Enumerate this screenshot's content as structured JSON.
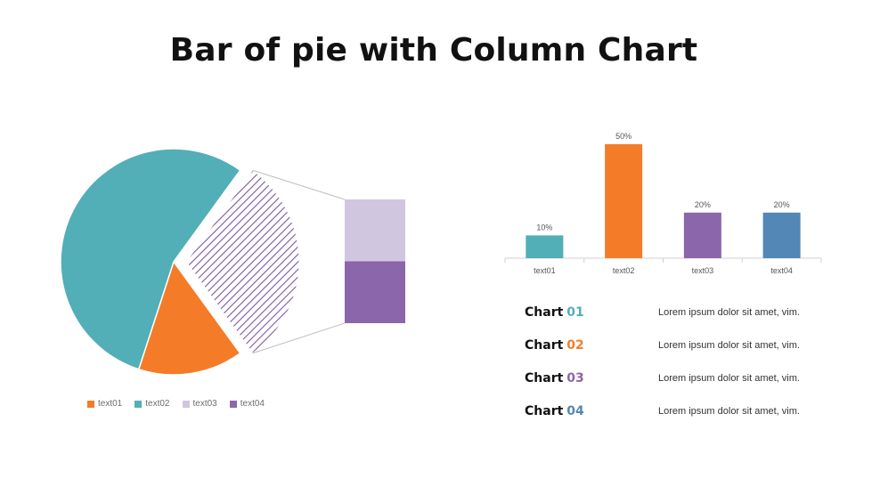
{
  "title": "Bar of pie with Column Chart",
  "colors": {
    "teal": "#52aeb7",
    "orange": "#f47c28",
    "light_purple": "#d1c6e0",
    "purple": "#8b66aa",
    "blue": "#5387b5",
    "hatch": "#7c58a3"
  },
  "chart_data": [
    {
      "type": "pie",
      "subtype": "bar-of-pie",
      "categories": [
        "text01",
        "text02",
        "text03",
        "text04"
      ],
      "values": [
        15,
        55,
        15,
        15
      ],
      "grouped_into_bar": [
        "text03",
        "text04"
      ],
      "colors": [
        "#f47c28",
        "#52aeb7",
        "#d1c6e0",
        "#8b66aa"
      ],
      "legend": "bottom"
    },
    {
      "type": "bar",
      "categories": [
        "text01",
        "text02",
        "text03",
        "text04"
      ],
      "values": [
        10,
        50,
        20,
        20
      ],
      "labels": [
        "10%",
        "50%",
        "20%",
        "20%"
      ],
      "colors": [
        "#52aeb7",
        "#f47c28",
        "#8b66aa",
        "#5387b5"
      ],
      "ylim": [
        0,
        50
      ],
      "grid": false
    }
  ],
  "legend": [
    {
      "label": "text01",
      "color": "#f47c28"
    },
    {
      "label": "text02",
      "color": "#52aeb7"
    },
    {
      "label": "text03",
      "color": "#d1c6e0"
    },
    {
      "label": "text04",
      "color": "#8b66aa"
    }
  ],
  "info": [
    {
      "label": "Chart",
      "num": "01",
      "color": "#52aeb7",
      "text": "Lorem ipsum dolor sit amet, vim."
    },
    {
      "label": "Chart",
      "num": "02",
      "color": "#f47c28",
      "text": "Lorem ipsum dolor sit amet, vim."
    },
    {
      "label": "Chart",
      "num": "03",
      "color": "#8b66aa",
      "text": "Lorem ipsum dolor sit amet, vim."
    },
    {
      "label": "Chart",
      "num": "04",
      "color": "#5387b5",
      "text": "Lorem ipsum dolor sit amet, vim."
    }
  ]
}
